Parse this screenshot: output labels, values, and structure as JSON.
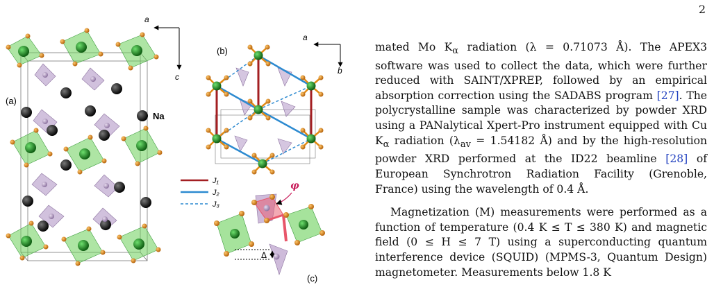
{
  "page_number": "2",
  "figure": {
    "panel_a": "(a)",
    "panel_b": "(b)",
    "panel_c": "(c)",
    "axis_a": "a",
    "axis_c": "c",
    "axis_b": "b",
    "na_label": "Na",
    "phi_label": "φ",
    "delta_label": "Δ",
    "legend": [
      {
        "label": "J₁",
        "color": "#a31f22",
        "style": "solid"
      },
      {
        "label": "J₂",
        "color": "#2c8ad0",
        "style": "solid"
      },
      {
        "label": "J₃",
        "color": "#2c8ad0",
        "style": "dashed"
      }
    ],
    "colors": {
      "octahedron": "#6bd05a",
      "tetrahedron": "#b397c6",
      "oxygen": "#e28a14",
      "transition_metal": "#1c8a1c",
      "sodium": "#111111",
      "phi_highlight": "#e8566a"
    }
  },
  "text": {
    "p1": [
      "mated Mo K",
      "α",
      " radiation (λ = 0.71073 Å). The APEX3 software was used to collect the data, which were further reduced with SAINT/XPREP, followed by an empirical absorption correction using the SADABS program ",
      "[27]",
      ". The polycrystalline sample was characterized by powder XRD using a PANalytical Xpert-Pro instrument equipped with Cu K",
      "α",
      " radiation (λ",
      "av",
      " = 1.54182 Å) and by the high-resolution powder XRD performed at the ID22 beamline ",
      "[28]",
      " of European Synchrotron Radiation Facility (Grenoble, France) using the wavelength of 0.4 Å."
    ],
    "p2": "Magnetization (M) measurements were performed as a function of temperature (0.4 K ≤ T ≤ 380 K) and magnetic field (0 ≤ H ≤ 7 T) using a superconducting quantum interference device (SQUID) (MPMS-3, Quantum Design) magnetometer. Measurements below 1.8 K"
  }
}
